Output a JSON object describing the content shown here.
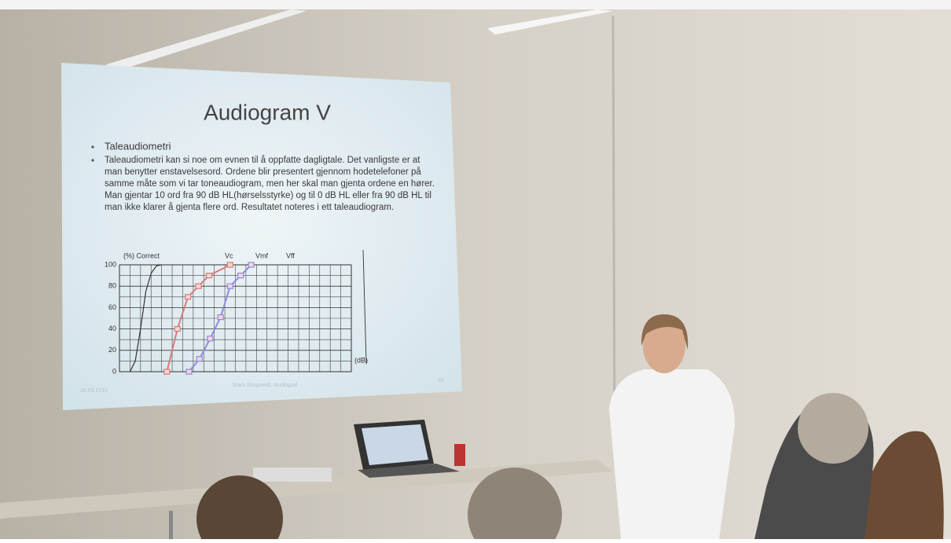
{
  "slide": {
    "title": "Audiogram V",
    "bullets": [
      [
        "Taleaudiometri"
      ],
      [
        "Taleaudiometri kan si noe om evnen til å oppfatte dagligtale. Det vanligste er at",
        "man benytter enstavelsesord. Ordene blir presentert gjennom hodetelefoner på",
        "samme måte som vi tar toneaudiogram, men her skal man gjenta ordene en hører.",
        "Man gjentar 10 ord fra 90 dB HL(hørselsstyrke) og til 0 dB HL eller fra 90 dB HL til",
        "man ikke klarer å gjenta flere ord. Resultatet noteres i ett taleaudiogram."
      ]
    ],
    "footer_date": "28.09.2018",
    "footer_text": "Siam Skogtvedt, Audiograf",
    "page_number": "34"
  },
  "chart_data": {
    "type": "line",
    "ylabel": "(%) Correct",
    "xlabel": "(dB)",
    "annotations": [
      "Vc",
      "Vmf",
      "Vff"
    ],
    "xlim": [
      0,
      22
    ],
    "ylim": [
      0,
      100
    ],
    "yticks": [
      0,
      20,
      40,
      60,
      80,
      100
    ],
    "grid": true,
    "series": [
      {
        "color": "#333333",
        "marker": false,
        "x": [
          1,
          1.5,
          2,
          2.5,
          3,
          3.5,
          4
        ],
        "values": [
          0,
          10,
          40,
          75,
          92,
          99,
          100
        ]
      },
      {
        "color": "#d9797a",
        "marker": true,
        "x": [
          4.5,
          5.5,
          6.5,
          7.5,
          8.5,
          10.5
        ],
        "values": [
          0,
          40,
          70,
          80,
          90,
          100
        ]
      },
      {
        "color": "#8a8ae0",
        "marker": true,
        "x": [
          6.6,
          7.6,
          8.6,
          9.6,
          10.5,
          11.5,
          12.5
        ],
        "values": [
          0,
          12,
          31,
          51,
          80,
          90,
          100
        ]
      }
    ]
  }
}
